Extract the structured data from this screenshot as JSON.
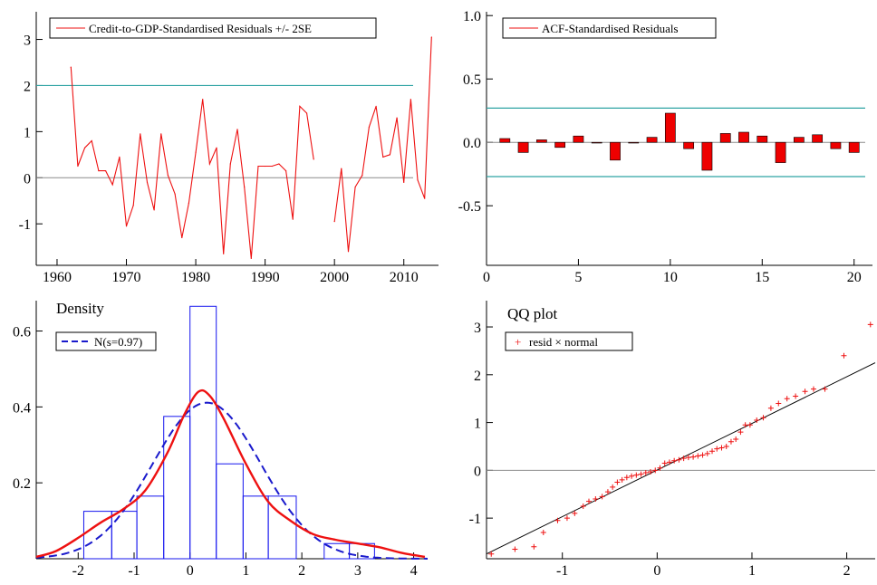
{
  "colors": {
    "residual_line": "#ee1111",
    "band_line": "#2fa3a3",
    "zero_line": "#8c8c8c",
    "acf_fill": "#ee0000",
    "hist_bar": "#1515ee",
    "density_curve": "#ee1111",
    "normal_curve": "#1a1acc",
    "qq_marker": "#ee1111",
    "qq_line": "#000000"
  },
  "chart_data": [
    {
      "type": "line",
      "legend": [
        "Credit-to-GDP-Standardised Residuals +/- 2SE"
      ],
      "legend_position": "top-left",
      "xlim": [
        1957,
        2015
      ],
      "ylim": [
        -1.9,
        3.6
      ],
      "x_ticks": [
        1960,
        1970,
        1980,
        1990,
        2000,
        2010
      ],
      "y_ticks": [
        -1,
        0,
        1,
        2,
        3
      ],
      "bands": [
        2,
        0
      ],
      "series": [
        {
          "values": [
            [
              1962,
              2.4
            ],
            [
              1963,
              0.25
            ],
            [
              1964,
              0.65
            ],
            [
              1965,
              0.8
            ],
            [
              1966,
              0.15
            ],
            [
              1967,
              0.15
            ],
            [
              1968,
              -0.15
            ],
            [
              1969,
              0.45
            ],
            [
              1970,
              -1.05
            ],
            [
              1971,
              -0.6
            ],
            [
              1972,
              0.95
            ],
            [
              1973,
              -0.1
            ],
            [
              1974,
              -0.7
            ],
            [
              1975,
              0.95
            ],
            [
              1976,
              0.05
            ],
            [
              1977,
              -0.35
            ],
            [
              1978,
              -1.3
            ],
            [
              1979,
              -0.55
            ],
            [
              1980,
              0.55
            ],
            [
              1981,
              1.7
            ],
            [
              1982,
              0.3
            ],
            [
              1983,
              0.65
            ],
            [
              1984,
              -1.65
            ],
            [
              1985,
              0.3
            ],
            [
              1986,
              1.05
            ],
            [
              1987,
              -0.2
            ],
            [
              1988,
              -1.75
            ],
            [
              1989,
              0.25
            ],
            [
              1990,
              0.25
            ],
            [
              1991,
              0.25
            ],
            [
              1992,
              0.3
            ],
            [
              1993,
              0.15
            ],
            [
              1994,
              -0.9
            ],
            [
              1995,
              1.55
            ],
            [
              1996,
              1.4
            ],
            [
              1997,
              0.4
            ]
          ]
        },
        {
          "values": [
            [
              2000,
              -0.95
            ],
            [
              2001,
              0.2
            ],
            [
              2002,
              -1.6
            ],
            [
              2003,
              -0.2
            ],
            [
              2004,
              0.05
            ],
            [
              2005,
              1.1
            ],
            [
              2006,
              1.55
            ],
            [
              2007,
              0.45
            ],
            [
              2008,
              0.5
            ],
            [
              2009,
              1.3
            ],
            [
              2010,
              -0.1
            ],
            [
              2011,
              1.7
            ],
            [
              2012,
              -0.05
            ],
            [
              2013,
              -0.45
            ],
            [
              2014,
              3.05
            ]
          ]
        }
      ]
    },
    {
      "type": "bar",
      "legend": [
        "ACF-Standardised Residuals"
      ],
      "legend_position": "top-left",
      "xlim": [
        0,
        21
      ],
      "ylim": [
        -0.97,
        1.03
      ],
      "x_ticks": [
        0,
        5,
        10,
        15,
        20
      ],
      "y_ticks": [
        -0.5,
        0.0,
        0.5,
        1.0
      ],
      "y_tick_labels": [
        "-0.5",
        "0.0",
        "0.5",
        "1.0"
      ],
      "bands": [
        0.27,
        -0.27
      ],
      "lags": [
        1,
        2,
        3,
        4,
        5,
        6,
        7,
        8,
        9,
        10,
        11,
        12,
        13,
        14,
        15,
        16,
        17,
        18,
        19,
        20
      ],
      "values": [
        0.03,
        -0.08,
        0.02,
        -0.04,
        0.05,
        0.0,
        -0.14,
        0.0,
        0.04,
        0.23,
        -0.05,
        -0.22,
        0.07,
        0.08,
        0.05,
        -0.16,
        0.04,
        0.06,
        -0.05,
        -0.08
      ]
    },
    {
      "type": "area",
      "title": "Density",
      "legend": [
        "N(s=0.97)"
      ],
      "legend_position": "top-left",
      "xlim": [
        -2.75,
        4.25
      ],
      "ylim": [
        0,
        0.68
      ],
      "x_ticks": [
        -2,
        -1,
        0,
        1,
        2,
        3,
        4
      ],
      "y_ticks": [
        0.2,
        0.4,
        0.6
      ],
      "y_tick_labels": [
        "0.2",
        "0.4",
        "0.6"
      ],
      "histogram": {
        "bin_edges": [
          -2.4,
          -1.9,
          -1.4,
          -0.95,
          -0.47,
          0.0,
          0.47,
          0.95,
          1.4,
          1.9,
          2.4,
          2.85,
          3.3
        ],
        "heights": [
          0.0,
          0.125,
          0.125,
          0.165,
          0.375,
          0.665,
          0.25,
          0.165,
          0.165,
          0.0,
          0.04,
          0.04
        ]
      },
      "kernel_density": {
        "x": [
          -2.75,
          -2.4,
          -2.0,
          -1.6,
          -1.2,
          -0.8,
          -0.4,
          -0.1,
          0.15,
          0.35,
          0.6,
          1.0,
          1.4,
          1.8,
          2.2,
          2.6,
          3.0,
          3.4,
          3.8,
          4.2
        ],
        "y": [
          0.005,
          0.02,
          0.055,
          0.095,
          0.13,
          0.18,
          0.28,
          0.38,
          0.44,
          0.43,
          0.37,
          0.25,
          0.15,
          0.1,
          0.065,
          0.05,
          0.04,
          0.03,
          0.015,
          0.005
        ]
      },
      "normal": {
        "mean": 0.3,
        "sd": 0.97
      }
    },
    {
      "type": "scatter",
      "title": "QQ plot",
      "legend": [
        "resid × normal"
      ],
      "legend_position": "top-left",
      "xlim": [
        -1.8,
        2.3
      ],
      "ylim": [
        -1.85,
        3.55
      ],
      "x_ticks": [
        -1,
        0,
        1,
        2
      ],
      "y_ticks": [
        -1,
        0,
        1,
        2,
        3
      ],
      "reference_line": {
        "from": [
          -1.8,
          -1.75
        ],
        "to": [
          2.3,
          2.25
        ]
      },
      "values": [
        [
          -1.75,
          -1.75
        ],
        [
          -1.5,
          -1.65
        ],
        [
          -1.3,
          -1.6
        ],
        [
          -1.2,
          -1.3
        ],
        [
          -1.05,
          -1.05
        ],
        [
          -0.95,
          -1.0
        ],
        [
          -0.87,
          -0.9
        ],
        [
          -0.78,
          -0.75
        ],
        [
          -0.72,
          -0.65
        ],
        [
          -0.65,
          -0.6
        ],
        [
          -0.58,
          -0.55
        ],
        [
          -0.52,
          -0.45
        ],
        [
          -0.47,
          -0.35
        ],
        [
          -0.42,
          -0.25
        ],
        [
          -0.37,
          -0.2
        ],
        [
          -0.32,
          -0.15
        ],
        [
          -0.27,
          -0.12
        ],
        [
          -0.22,
          -0.1
        ],
        [
          -0.17,
          -0.08
        ],
        [
          -0.12,
          -0.05
        ],
        [
          -0.07,
          -0.03
        ],
        [
          -0.02,
          0.0
        ],
        [
          0.03,
          0.05
        ],
        [
          0.08,
          0.15
        ],
        [
          0.13,
          0.17
        ],
        [
          0.18,
          0.2
        ],
        [
          0.23,
          0.22
        ],
        [
          0.28,
          0.25
        ],
        [
          0.33,
          0.27
        ],
        [
          0.38,
          0.28
        ],
        [
          0.43,
          0.3
        ],
        [
          0.48,
          0.32
        ],
        [
          0.53,
          0.35
        ],
        [
          0.58,
          0.4
        ],
        [
          0.63,
          0.45
        ],
        [
          0.68,
          0.47
        ],
        [
          0.73,
          0.5
        ],
        [
          0.78,
          0.6
        ],
        [
          0.83,
          0.65
        ],
        [
          0.88,
          0.8
        ],
        [
          0.93,
          0.95
        ],
        [
          0.98,
          0.95
        ],
        [
          1.05,
          1.05
        ],
        [
          1.12,
          1.1
        ],
        [
          1.2,
          1.3
        ],
        [
          1.28,
          1.4
        ],
        [
          1.37,
          1.5
        ],
        [
          1.46,
          1.55
        ],
        [
          1.56,
          1.65
        ],
        [
          1.65,
          1.7
        ],
        [
          1.77,
          1.7
        ],
        [
          1.97,
          2.4
        ],
        [
          2.25,
          3.05
        ]
      ]
    }
  ]
}
